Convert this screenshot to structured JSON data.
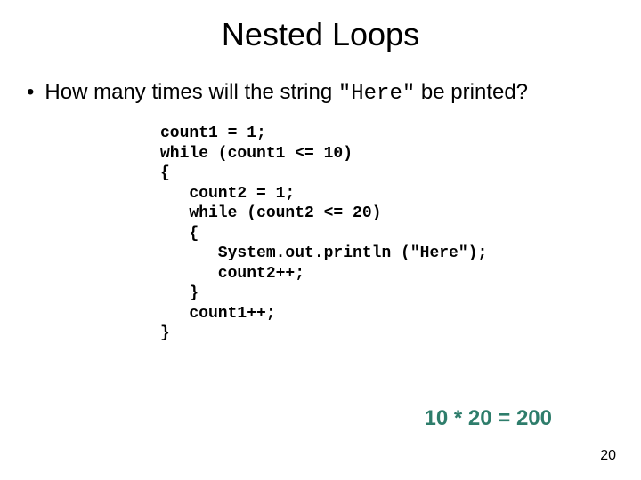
{
  "slide": {
    "title": "Nested Loops",
    "bullet_glyph": "•",
    "question_pre": "How many times will the string ",
    "question_code": "\"Here\"",
    "question_post": " be printed?",
    "code": "count1 = 1;\nwhile (count1 <= 10)\n{\n   count2 = 1;\n   while (count2 <= 20)\n   {\n      System.out.println (\"Here\");\n      count2++;\n   }\n   count1++;\n}",
    "answer": "10 * 20 = 200",
    "page_number": "20",
    "colors": {
      "title": "#000000",
      "text": "#000000",
      "answer": "#2e7d6b",
      "background": "#ffffff"
    },
    "fonts": {
      "title_size": 36,
      "body_size": 24,
      "code_size": 18,
      "pagenum_size": 16
    }
  }
}
